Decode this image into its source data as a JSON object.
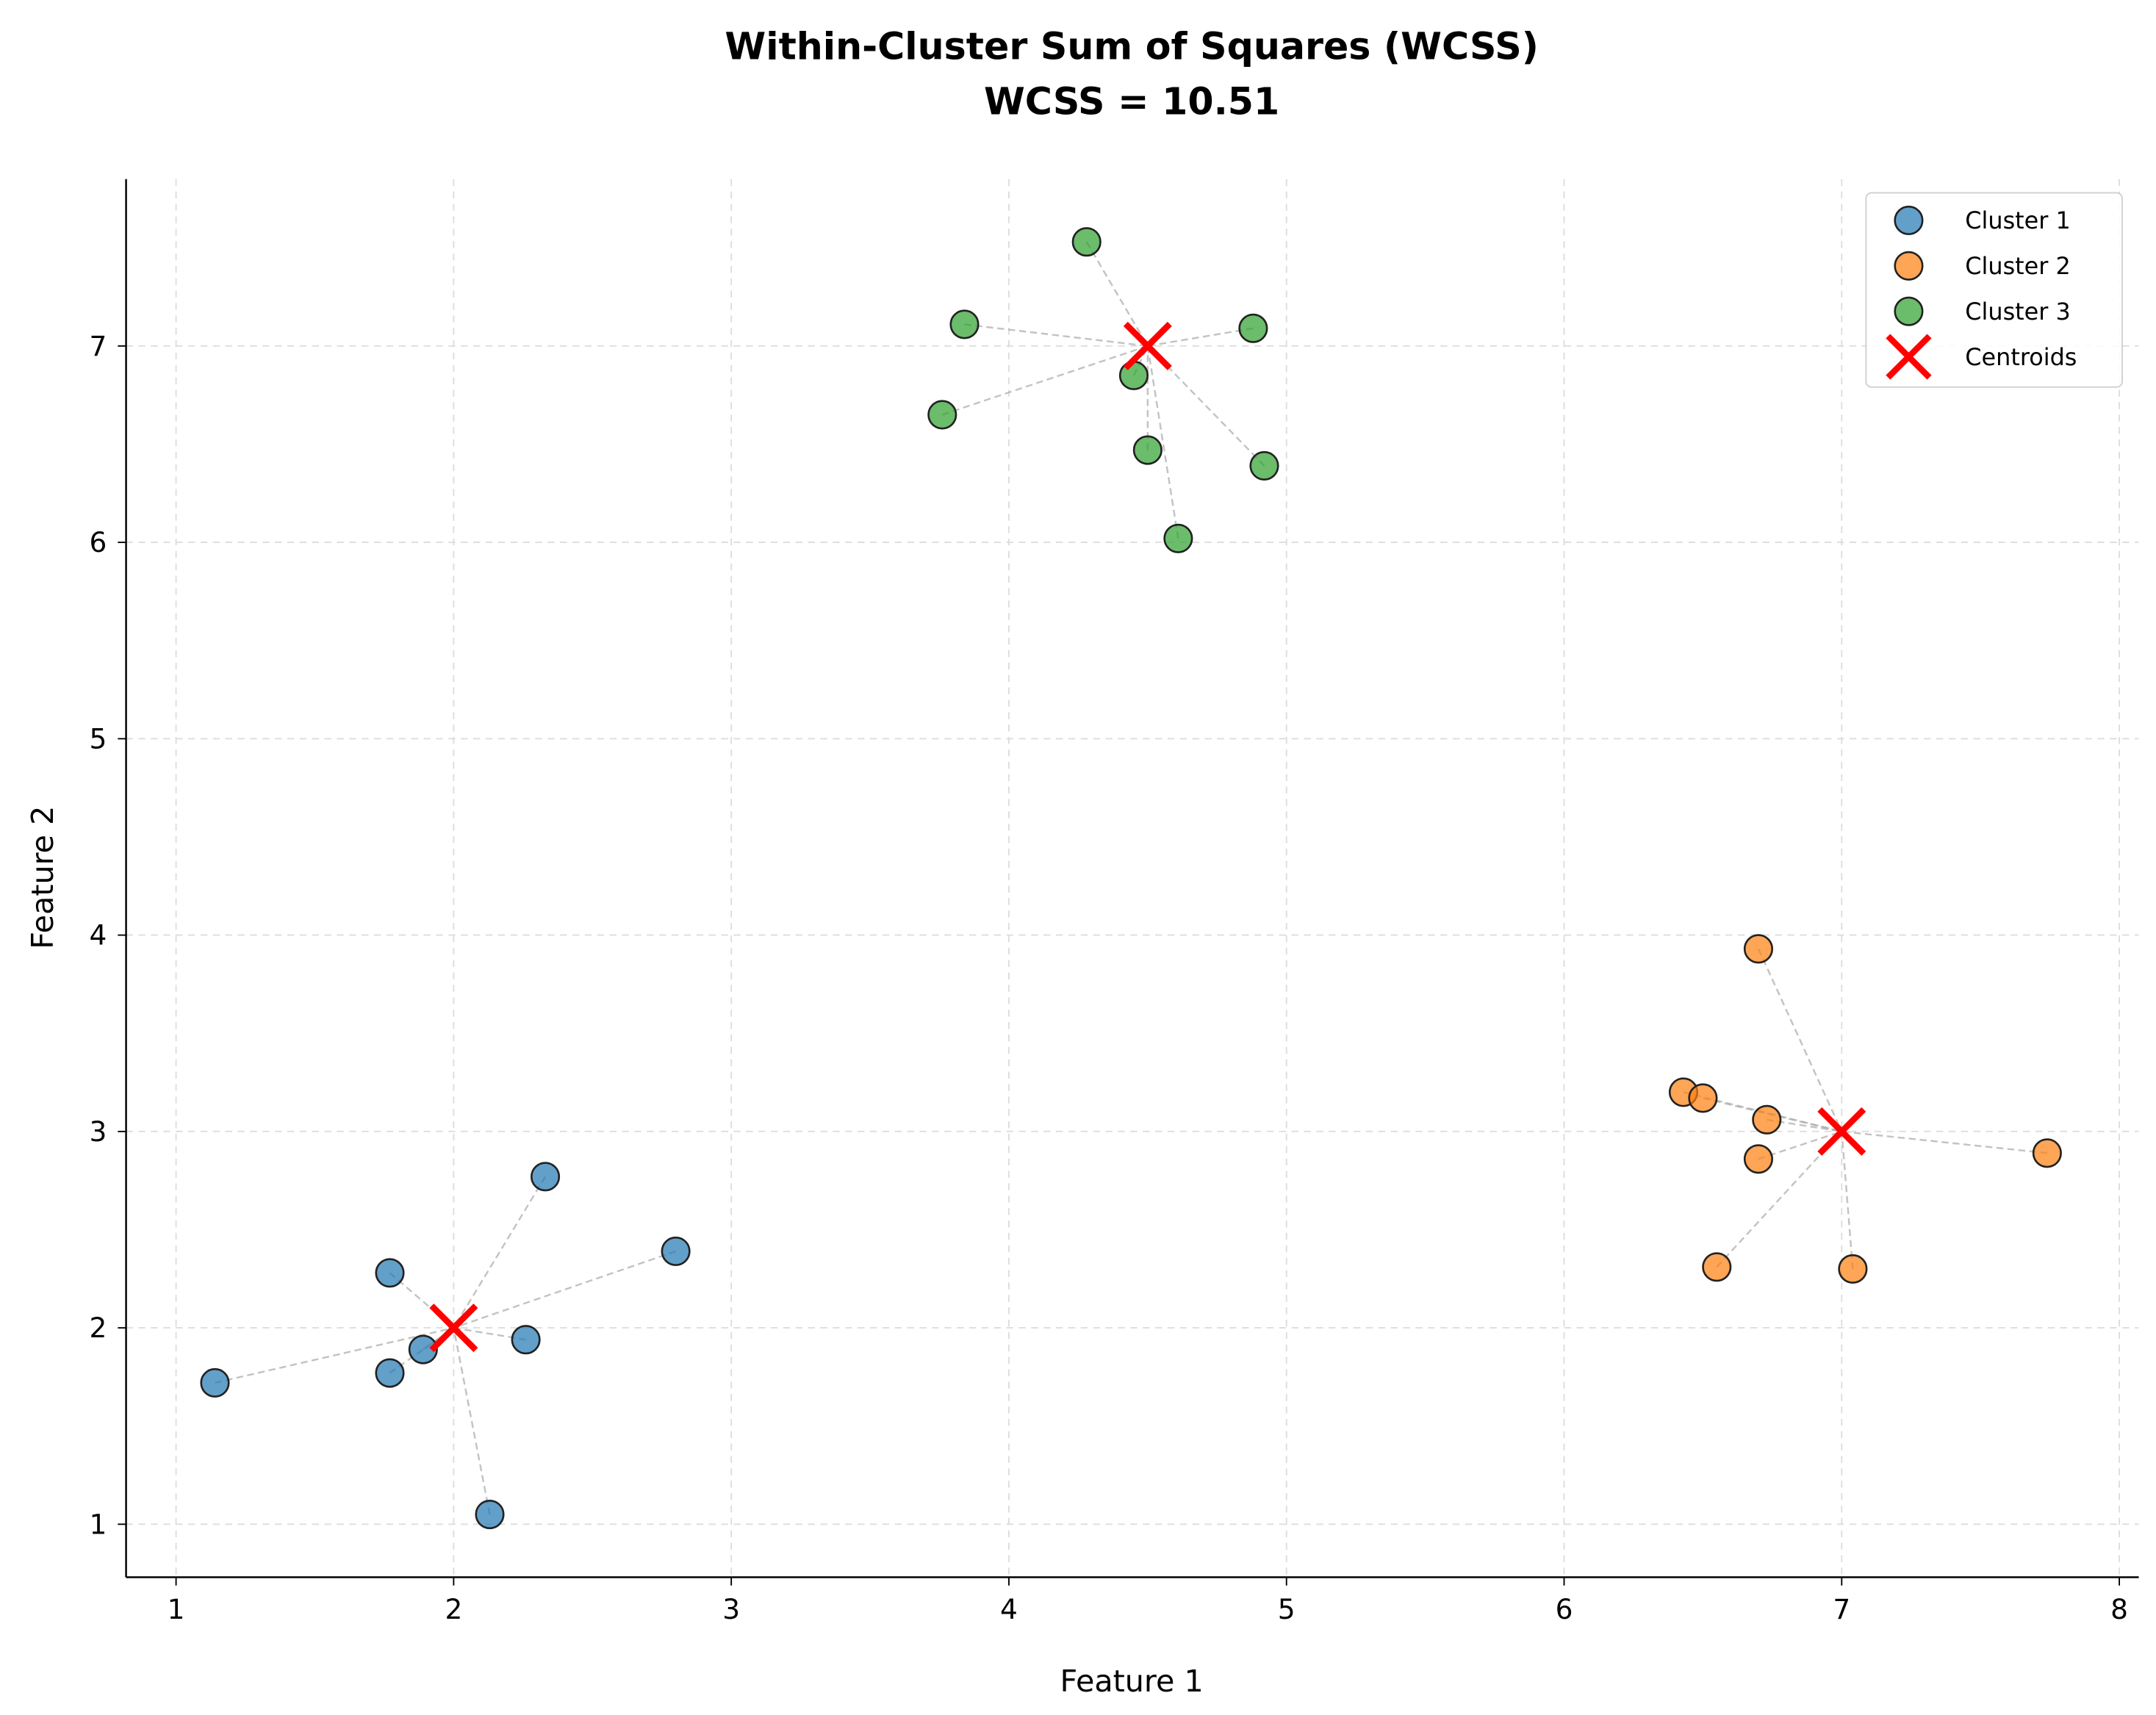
{
  "chart_data": {
    "type": "scatter",
    "title": "Within-Cluster Sum of Squares (WCSS)",
    "subtitle": "WCSS = 10.51",
    "xlabel": "Feature 1",
    "ylabel": "Feature 2",
    "xlim": [
      0.82,
      8.07
    ],
    "ylim": [
      0.73,
      7.85
    ],
    "xticks": [
      1,
      2,
      3,
      4,
      5,
      6,
      7,
      8
    ],
    "yticks": [
      1,
      2,
      3,
      4,
      5,
      6,
      7
    ],
    "grid": true,
    "legend_position": "top-right",
    "series": [
      {
        "name": "Cluster 1",
        "color": "#1f77b4",
        "points": [
          [
            1.14,
            1.72
          ],
          [
            1.77,
            2.28
          ],
          [
            1.77,
            1.77
          ],
          [
            1.89,
            1.89
          ],
          [
            2.26,
            1.94
          ],
          [
            2.33,
            2.77
          ],
          [
            2.8,
            2.39
          ],
          [
            2.13,
            1.05
          ]
        ]
      },
      {
        "name": "Cluster 2",
        "color": "#ff7f0e",
        "points": [
          [
            6.7,
            3.93
          ],
          [
            6.43,
            3.2
          ],
          [
            6.5,
            3.17
          ],
          [
            6.73,
            3.06
          ],
          [
            6.7,
            2.86
          ],
          [
            7.74,
            2.89
          ],
          [
            6.55,
            2.31
          ],
          [
            7.04,
            2.3
          ]
        ]
      },
      {
        "name": "Cluster 3",
        "color": "#2ca02c",
        "points": [
          [
            4.28,
            7.53
          ],
          [
            3.84,
            7.11
          ],
          [
            4.88,
            7.09
          ],
          [
            4.45,
            6.85
          ],
          [
            3.76,
            6.65
          ],
          [
            4.5,
            6.47
          ],
          [
            4.92,
            6.39
          ],
          [
            4.61,
            6.02
          ]
        ]
      }
    ],
    "centroids": {
      "name": "Centroids",
      "color": "#ff0000",
      "points": [
        [
          2,
          2
        ],
        [
          7,
          3
        ],
        [
          4.5,
          7
        ]
      ]
    }
  }
}
